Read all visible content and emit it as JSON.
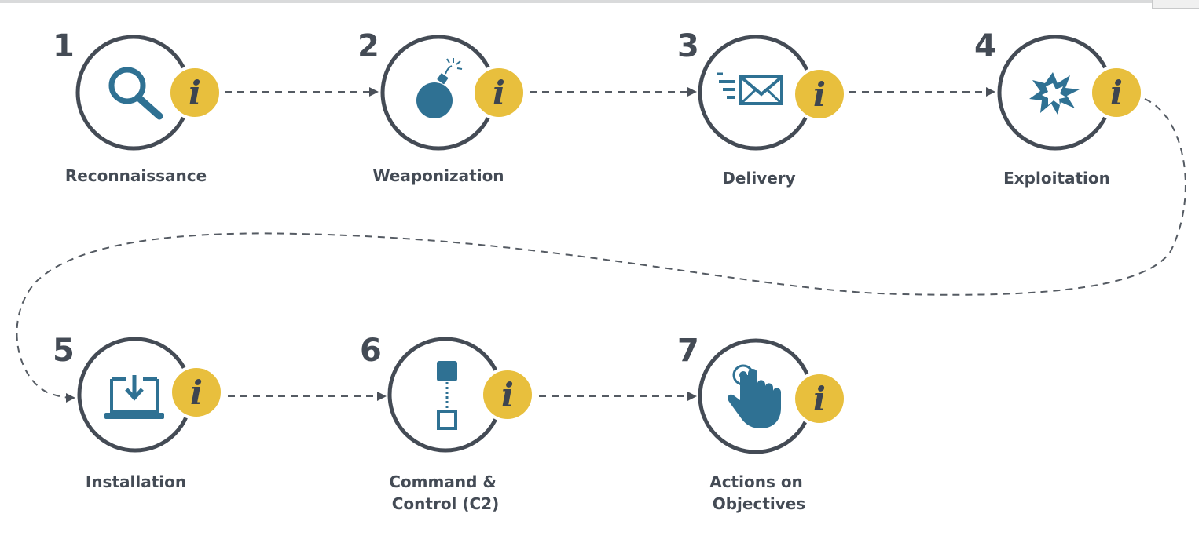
{
  "colors": {
    "outline": "#444b55",
    "icon": "#2f7193",
    "badge": "#e8bf3d",
    "connector": "#555b63"
  },
  "info_badge_text": "i",
  "steps": [
    {
      "number": "1",
      "label_lines": [
        "Reconnaissance"
      ],
      "icon": "magnifier-icon"
    },
    {
      "number": "2",
      "label_lines": [
        "Weaponization"
      ],
      "icon": "bomb-icon"
    },
    {
      "number": "3",
      "label_lines": [
        "Delivery"
      ],
      "icon": "envelope-icon"
    },
    {
      "number": "4",
      "label_lines": [
        "Exploitation"
      ],
      "icon": "explosion-icon"
    },
    {
      "number": "5",
      "label_lines": [
        "Installation"
      ],
      "icon": "laptop-download-icon"
    },
    {
      "number": "6",
      "label_lines": [
        "Command &",
        "Control (C2)"
      ],
      "icon": "command-control-icon"
    },
    {
      "number": "7",
      "label_lines": [
        "Actions on",
        "Objectives"
      ],
      "icon": "hand-tap-icon"
    }
  ]
}
